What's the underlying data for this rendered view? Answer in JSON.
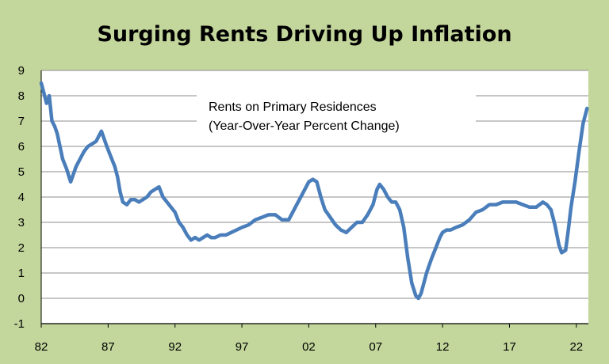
{
  "chart_data": {
    "type": "line",
    "title": "Surging Rents Driving Up Inflation",
    "xlabel": "",
    "ylabel": "",
    "ylim": [
      -1,
      9
    ],
    "xlim": [
      1982,
      2022.9
    ],
    "x_ticks": [
      1982,
      1987,
      1992,
      1997,
      2002,
      2007,
      2012,
      2017,
      2022
    ],
    "x_tick_labels": [
      "82",
      "87",
      "92",
      "97",
      "02",
      "07",
      "12",
      "17",
      "22"
    ],
    "y_ticks": [
      -1,
      0,
      1,
      2,
      3,
      4,
      5,
      6,
      7,
      8,
      9
    ],
    "y_tick_labels": [
      "-1",
      "0",
      "1",
      "2",
      "3",
      "4",
      "5",
      "6",
      "7",
      "8",
      "9"
    ],
    "grid": "horizontal",
    "legend": "none",
    "annotation": [
      "Rents on Primary Residences",
      "(Year-Over-Year Percent Change)"
    ],
    "colors": {
      "line": "#4a7ebb",
      "plot_background": "#ffffff",
      "page_background": "#c3d69b",
      "grid": "#8c8c8c"
    },
    "series": [
      {
        "x": [
          1982.0,
          1982.2,
          1982.4,
          1982.6,
          1982.8,
          1983.0,
          1983.2,
          1983.4,
          1983.6,
          1983.9,
          1984.2,
          1984.4,
          1984.6,
          1984.9,
          1985.2,
          1985.5,
          1985.8,
          1986.1,
          1986.3,
          1986.5,
          1986.7,
          1986.9,
          1987.2,
          1987.5,
          1987.7,
          1987.9,
          1988.1,
          1988.4,
          1988.7,
          1989.0,
          1989.3,
          1989.6,
          1989.9,
          1990.2,
          1990.5,
          1990.8,
          1991.1,
          1991.4,
          1991.7,
          1992.0,
          1992.3,
          1992.6,
          1992.9,
          1993.2,
          1993.5,
          1993.8,
          1994.1,
          1994.4,
          1994.7,
          1995.0,
          1995.4,
          1995.8,
          1996.2,
          1996.6,
          1997.0,
          1997.5,
          1998.0,
          1998.5,
          1999.0,
          1999.5,
          2000.0,
          2000.5,
          2001.0,
          2001.5,
          2002.0,
          2002.3,
          2002.6,
          2002.9,
          2003.2,
          2003.6,
          2004.0,
          2004.4,
          2004.8,
          2005.2,
          2005.6,
          2006.0,
          2006.4,
          2006.8,
          2007.1,
          2007.3,
          2007.6,
          2007.9,
          2008.2,
          2008.5,
          2008.8,
          2009.1,
          2009.4,
          2009.7,
          2010.0,
          2010.2,
          2010.4,
          2010.6,
          2010.8,
          2011.0,
          2011.2,
          2011.5,
          2011.8,
          2012.0,
          2012.3,
          2012.6,
          2013.0,
          2013.5,
          2014.0,
          2014.5,
          2015.0,
          2015.5,
          2016.0,
          2016.5,
          2017.0,
          2017.5,
          2018.0,
          2018.5,
          2019.0,
          2019.5,
          2019.8,
          2020.1,
          2020.4,
          2020.7,
          2020.9,
          2021.2,
          2021.4,
          2021.6,
          2021.9,
          2022.2,
          2022.5,
          2022.8
        ],
        "y": [
          8.5,
          8.1,
          7.7,
          8.0,
          7.0,
          6.8,
          6.5,
          6.0,
          5.5,
          5.1,
          4.6,
          4.9,
          5.2,
          5.5,
          5.8,
          6.0,
          6.1,
          6.2,
          6.4,
          6.6,
          6.3,
          6.0,
          5.6,
          5.2,
          4.8,
          4.2,
          3.8,
          3.7,
          3.9,
          3.9,
          3.8,
          3.9,
          4.0,
          4.2,
          4.3,
          4.4,
          4.0,
          3.8,
          3.6,
          3.4,
          3.0,
          2.8,
          2.5,
          2.3,
          2.4,
          2.3,
          2.4,
          2.5,
          2.4,
          2.4,
          2.5,
          2.5,
          2.6,
          2.7,
          2.8,
          2.9,
          3.1,
          3.2,
          3.3,
          3.3,
          3.1,
          3.1,
          3.6,
          4.1,
          4.6,
          4.7,
          4.6,
          4.0,
          3.5,
          3.2,
          2.9,
          2.7,
          2.6,
          2.8,
          3.0,
          3.0,
          3.3,
          3.7,
          4.3,
          4.5,
          4.3,
          4.0,
          3.8,
          3.8,
          3.5,
          2.8,
          1.6,
          0.6,
          0.1,
          0.0,
          0.2,
          0.6,
          1.0,
          1.3,
          1.6,
          2.0,
          2.4,
          2.6,
          2.7,
          2.7,
          2.8,
          2.9,
          3.1,
          3.4,
          3.5,
          3.7,
          3.7,
          3.8,
          3.8,
          3.8,
          3.7,
          3.6,
          3.6,
          3.8,
          3.7,
          3.5,
          2.9,
          2.1,
          1.8,
          1.9,
          2.7,
          3.6,
          4.6,
          5.8,
          6.9,
          7.5
        ]
      }
    ]
  }
}
